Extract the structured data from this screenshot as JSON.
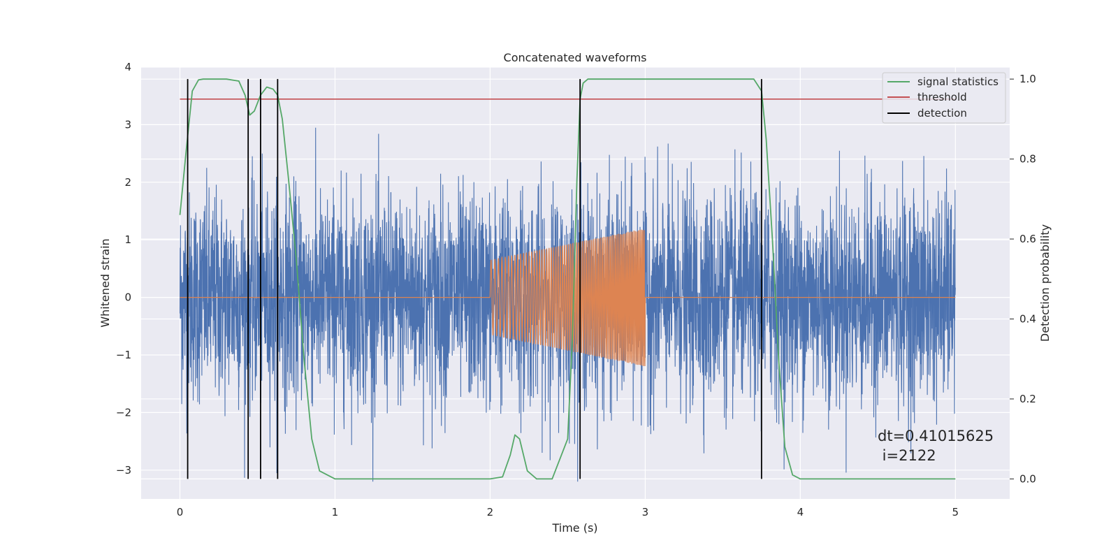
{
  "chart_data": {
    "type": "line",
    "title": "Concatenated waveforms",
    "xlabel": "Time (s)",
    "ylabel_left": "Whitened strain",
    "ylabel_right": "Detection probability",
    "xlim": [
      -0.25,
      5.35
    ],
    "ylim_left": [
      -3.5,
      4.0
    ],
    "ylim_right": [
      -0.05,
      1.03
    ],
    "x_ticks": [
      0,
      1,
      2,
      3,
      4,
      5
    ],
    "y_ticks_left": [
      -3,
      -2,
      -1,
      0,
      1,
      2,
      3,
      4
    ],
    "y_ticks_right": [
      0.0,
      0.2,
      0.4,
      0.6,
      0.8,
      1.0
    ],
    "grid": true,
    "legend_position": "upper-right",
    "series": [
      {
        "name": "",
        "axis": "left",
        "color": "#4c72b0",
        "description": "noise",
        "x_range": [
          0,
          5
        ],
        "amplitude_range": [
          -3.2,
          3.7
        ]
      },
      {
        "name": "",
        "axis": "left",
        "color": "#dd8452",
        "description": "injected chirp",
        "start": 2.0,
        "end": 3.0,
        "amplitude_start": 0.65,
        "amplitude_end": 1.2
      },
      {
        "name": "signal statistics",
        "axis": "right",
        "color": "#55a868",
        "x": [
          0,
          0.04,
          0.08,
          0.12,
          0.15,
          0.2,
          0.3,
          0.38,
          0.42,
          0.45,
          0.48,
          0.52,
          0.56,
          0.6,
          0.63,
          0.66,
          0.7,
          0.75,
          0.8,
          0.85,
          0.9,
          1.0,
          2.0,
          2.08,
          2.13,
          2.16,
          2.19,
          2.24,
          2.3,
          2.4,
          2.5,
          2.53,
          2.56,
          2.58,
          2.6,
          2.63,
          2.7,
          3.7,
          3.75,
          3.78,
          3.82,
          3.86,
          3.9,
          3.95,
          4.0,
          5.0
        ],
        "y": [
          0.66,
          0.82,
          0.97,
          0.998,
          1.0,
          1.0,
          1.0,
          0.995,
          0.96,
          0.91,
          0.92,
          0.96,
          0.98,
          0.975,
          0.96,
          0.9,
          0.75,
          0.55,
          0.3,
          0.1,
          0.02,
          0.0,
          0.0,
          0.005,
          0.06,
          0.11,
          0.1,
          0.02,
          0.0,
          0.0,
          0.1,
          0.35,
          0.75,
          0.95,
          0.99,
          1.0,
          1.0,
          1.0,
          0.97,
          0.85,
          0.6,
          0.3,
          0.08,
          0.01,
          0.0,
          0.0
        ]
      },
      {
        "name": "threshold",
        "axis": "right",
        "color": "#c44e52",
        "x": [
          0,
          5
        ],
        "y": [
          0.95,
          0.95
        ]
      },
      {
        "name": "detection",
        "axis": "right",
        "color": "#000000",
        "type": "vlines",
        "x": [
          0.05,
          0.44,
          0.52,
          0.63,
          2.58,
          3.75
        ],
        "y_range": [
          0.0,
          1.0
        ]
      }
    ],
    "annotation": {
      "line1": "dt=0.41015625",
      "line2": " i=2122",
      "x": 4.52,
      "y": -2.6
    }
  }
}
